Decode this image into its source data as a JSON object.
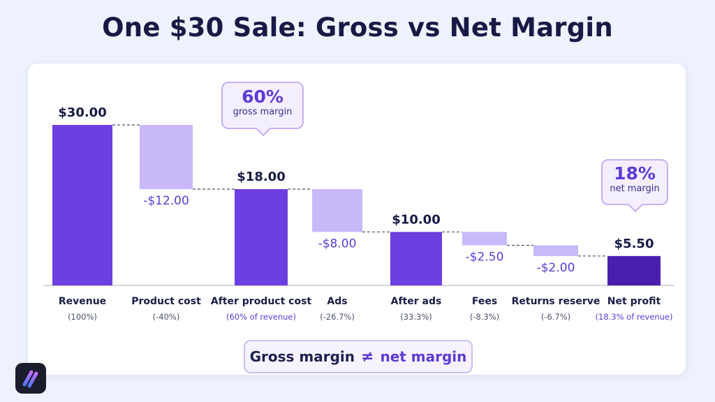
{
  "title": "One $30 Sale: Gross vs Net Margin",
  "colors": {
    "total": "#6c3fe0",
    "total_dark": "#4a1fb0",
    "decrease": "#c9b8fa",
    "value_dark": "#171a45",
    "value_neg": "#5b3cd6",
    "background": "#eef2fc"
  },
  "callouts": {
    "gross": {
      "value": "60%",
      "label": "gross margin"
    },
    "net": {
      "value": "18%",
      "label": "net margin"
    }
  },
  "footer": {
    "left": "Gross margin",
    "symbol": "≠",
    "right": "net margin"
  },
  "logo_icon": "slash-logo-icon",
  "chart_data": {
    "type": "bar",
    "subtype": "waterfall",
    "ylim": [
      0,
      30
    ],
    "grid": false,
    "categories": [
      "Revenue",
      "Product cost",
      "After product cost",
      "Ads",
      "After ads",
      "Fees",
      "Returns reserve",
      "Net profit"
    ],
    "sublabels": [
      "(100%)",
      "(-40%)",
      "(60% of revenue)",
      "(-26.7%)",
      "(33.3%)",
      "(-8.3%)",
      "(-6.7%)",
      "(18.3% of revenue)"
    ],
    "kinds": [
      "total",
      "decrease",
      "total",
      "decrease",
      "total",
      "decrease",
      "decrease",
      "total"
    ],
    "values": [
      30,
      -12,
      18,
      -8,
      10,
      -2.5,
      -2,
      5.5
    ],
    "value_labels": [
      "$30.00",
      "-$12.00",
      "$18.00",
      "-$8.00",
      "$10.00",
      "-$2.50",
      "-$2.00",
      "$5.50"
    ]
  }
}
